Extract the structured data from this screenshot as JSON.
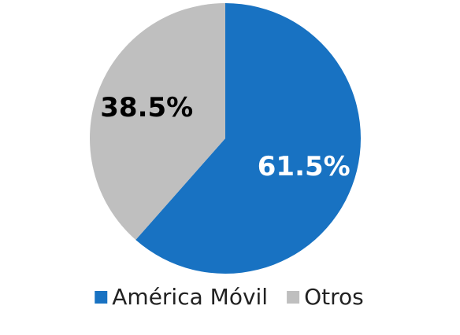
{
  "chart_data": {
    "type": "pie",
    "categories": [
      "América Móvil",
      "Otros"
    ],
    "values": [
      61.5,
      38.5
    ],
    "value_labels": [
      "61.5%",
      "38.5%"
    ],
    "colors": [
      "#1872c2",
      "#bfbfbf"
    ],
    "label_colors": [
      "#ffffff",
      "#000000"
    ],
    "legend": "bottom"
  }
}
